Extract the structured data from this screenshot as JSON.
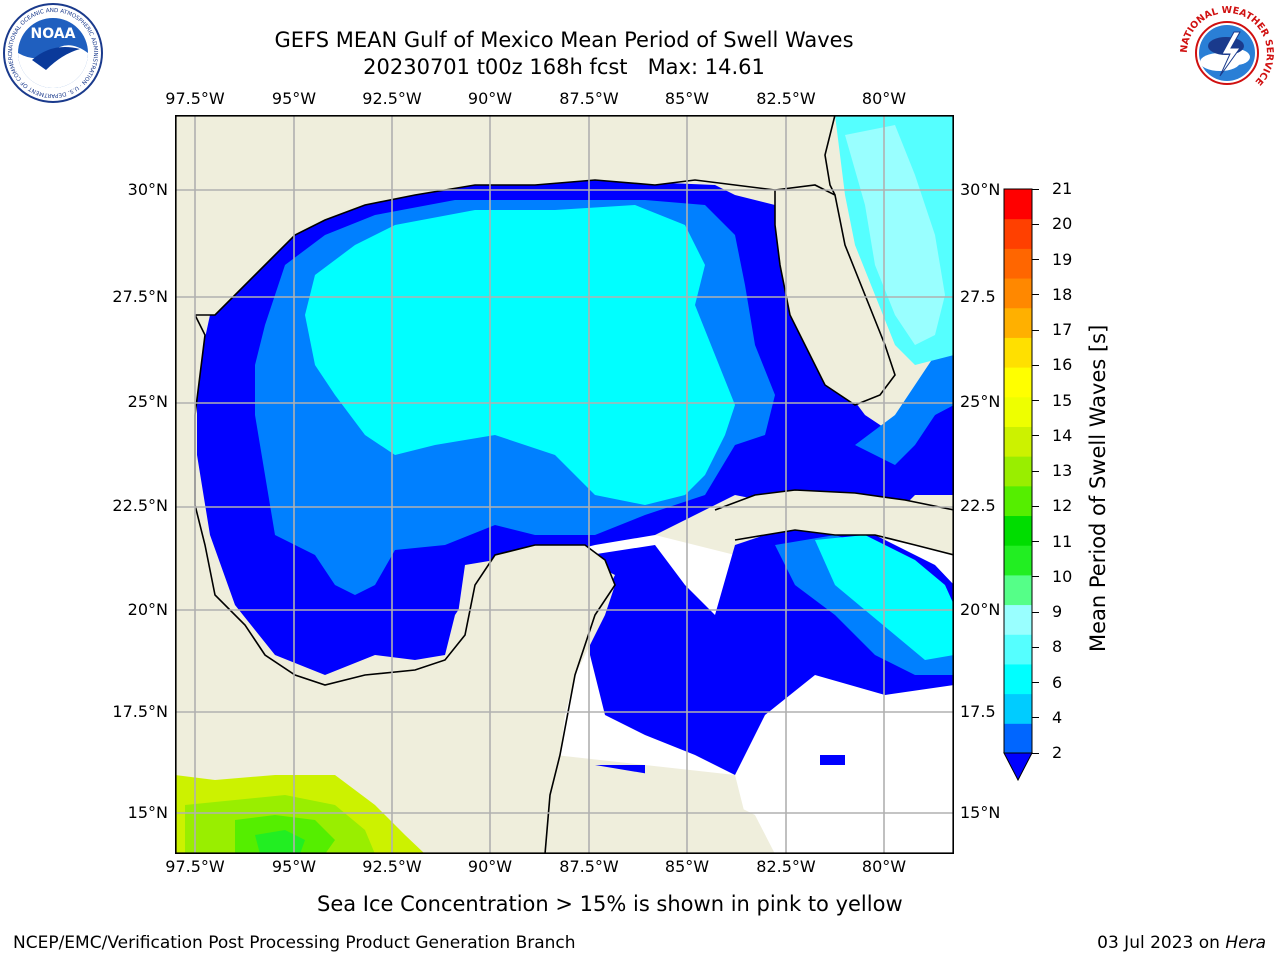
{
  "header": {
    "title_line1": "GEFS MEAN Gulf of Mexico Mean Period of Swell Waves",
    "title_line2": "20230701 t00z 168h fcst   Max: 14.61"
  },
  "logos": {
    "left": {
      "icon": "noaa-logo-icon",
      "text": "NOAA",
      "ring_text": "NATIONAL OCEANIC AND ATMOSPHERIC ADMINISTRATION · U.S. DEPARTMENT OF COMMERCE"
    },
    "right": {
      "icon": "nws-logo-icon",
      "ring_text": "NATIONAL WEATHER SERVICE"
    }
  },
  "map": {
    "lon_ticks_top": [
      "97.5°W",
      "95°W",
      "92.5°W",
      "90°W",
      "87.5°W",
      "85°W",
      "82.5°W",
      "80°W"
    ],
    "lon_ticks_bottom": [
      "97.5°W",
      "95°W",
      "92.5°W",
      "90°W",
      "87.5°W",
      "85°W",
      "82.5°W",
      "80°W"
    ],
    "lat_ticks_left": [
      "30°N",
      "27.5°N",
      "25°N",
      "22.5°N",
      "20°N",
      "17.5°N",
      "15°N"
    ],
    "lat_ticks_right": [
      "30°N",
      "27.5",
      "25°N",
      "22.5",
      "20°N",
      "17.5",
      "15°N"
    ],
    "colors": {
      "land": "#efeedc",
      "no_data": "#ffffff",
      "grid": "#b0b0b0",
      "coast": "#000000"
    }
  },
  "colorbar": {
    "label": "Mean Period of Swell Waves [s]",
    "ticks": [
      "21",
      "20",
      "19",
      "18",
      "17",
      "16",
      "15",
      "14",
      "13",
      "12",
      "11",
      "10",
      "9",
      "8",
      "6",
      "4",
      "2"
    ],
    "colors_bottom_to_top": [
      "#0066ff",
      "#00ccff",
      "#00ffff",
      "#55ffff",
      "#99ffff",
      "#55ff88",
      "#22ee22",
      "#00dd00",
      "#55ee00",
      "#99ee00",
      "#ccf200",
      "#eeff00",
      "#ffff00",
      "#ffe000",
      "#ffb000",
      "#ff8800",
      "#ff6600",
      "#ff4000",
      "#ff0000"
    ],
    "extend_color": "#0000ff"
  },
  "caption": "Sea Ice Concentration > 15% is shown in pink to yellow",
  "footer": {
    "left": "NCEP/EMC/Verification Post Processing Product Generation Branch",
    "date": "03 Jul 2023 on ",
    "host": "Hera"
  }
}
